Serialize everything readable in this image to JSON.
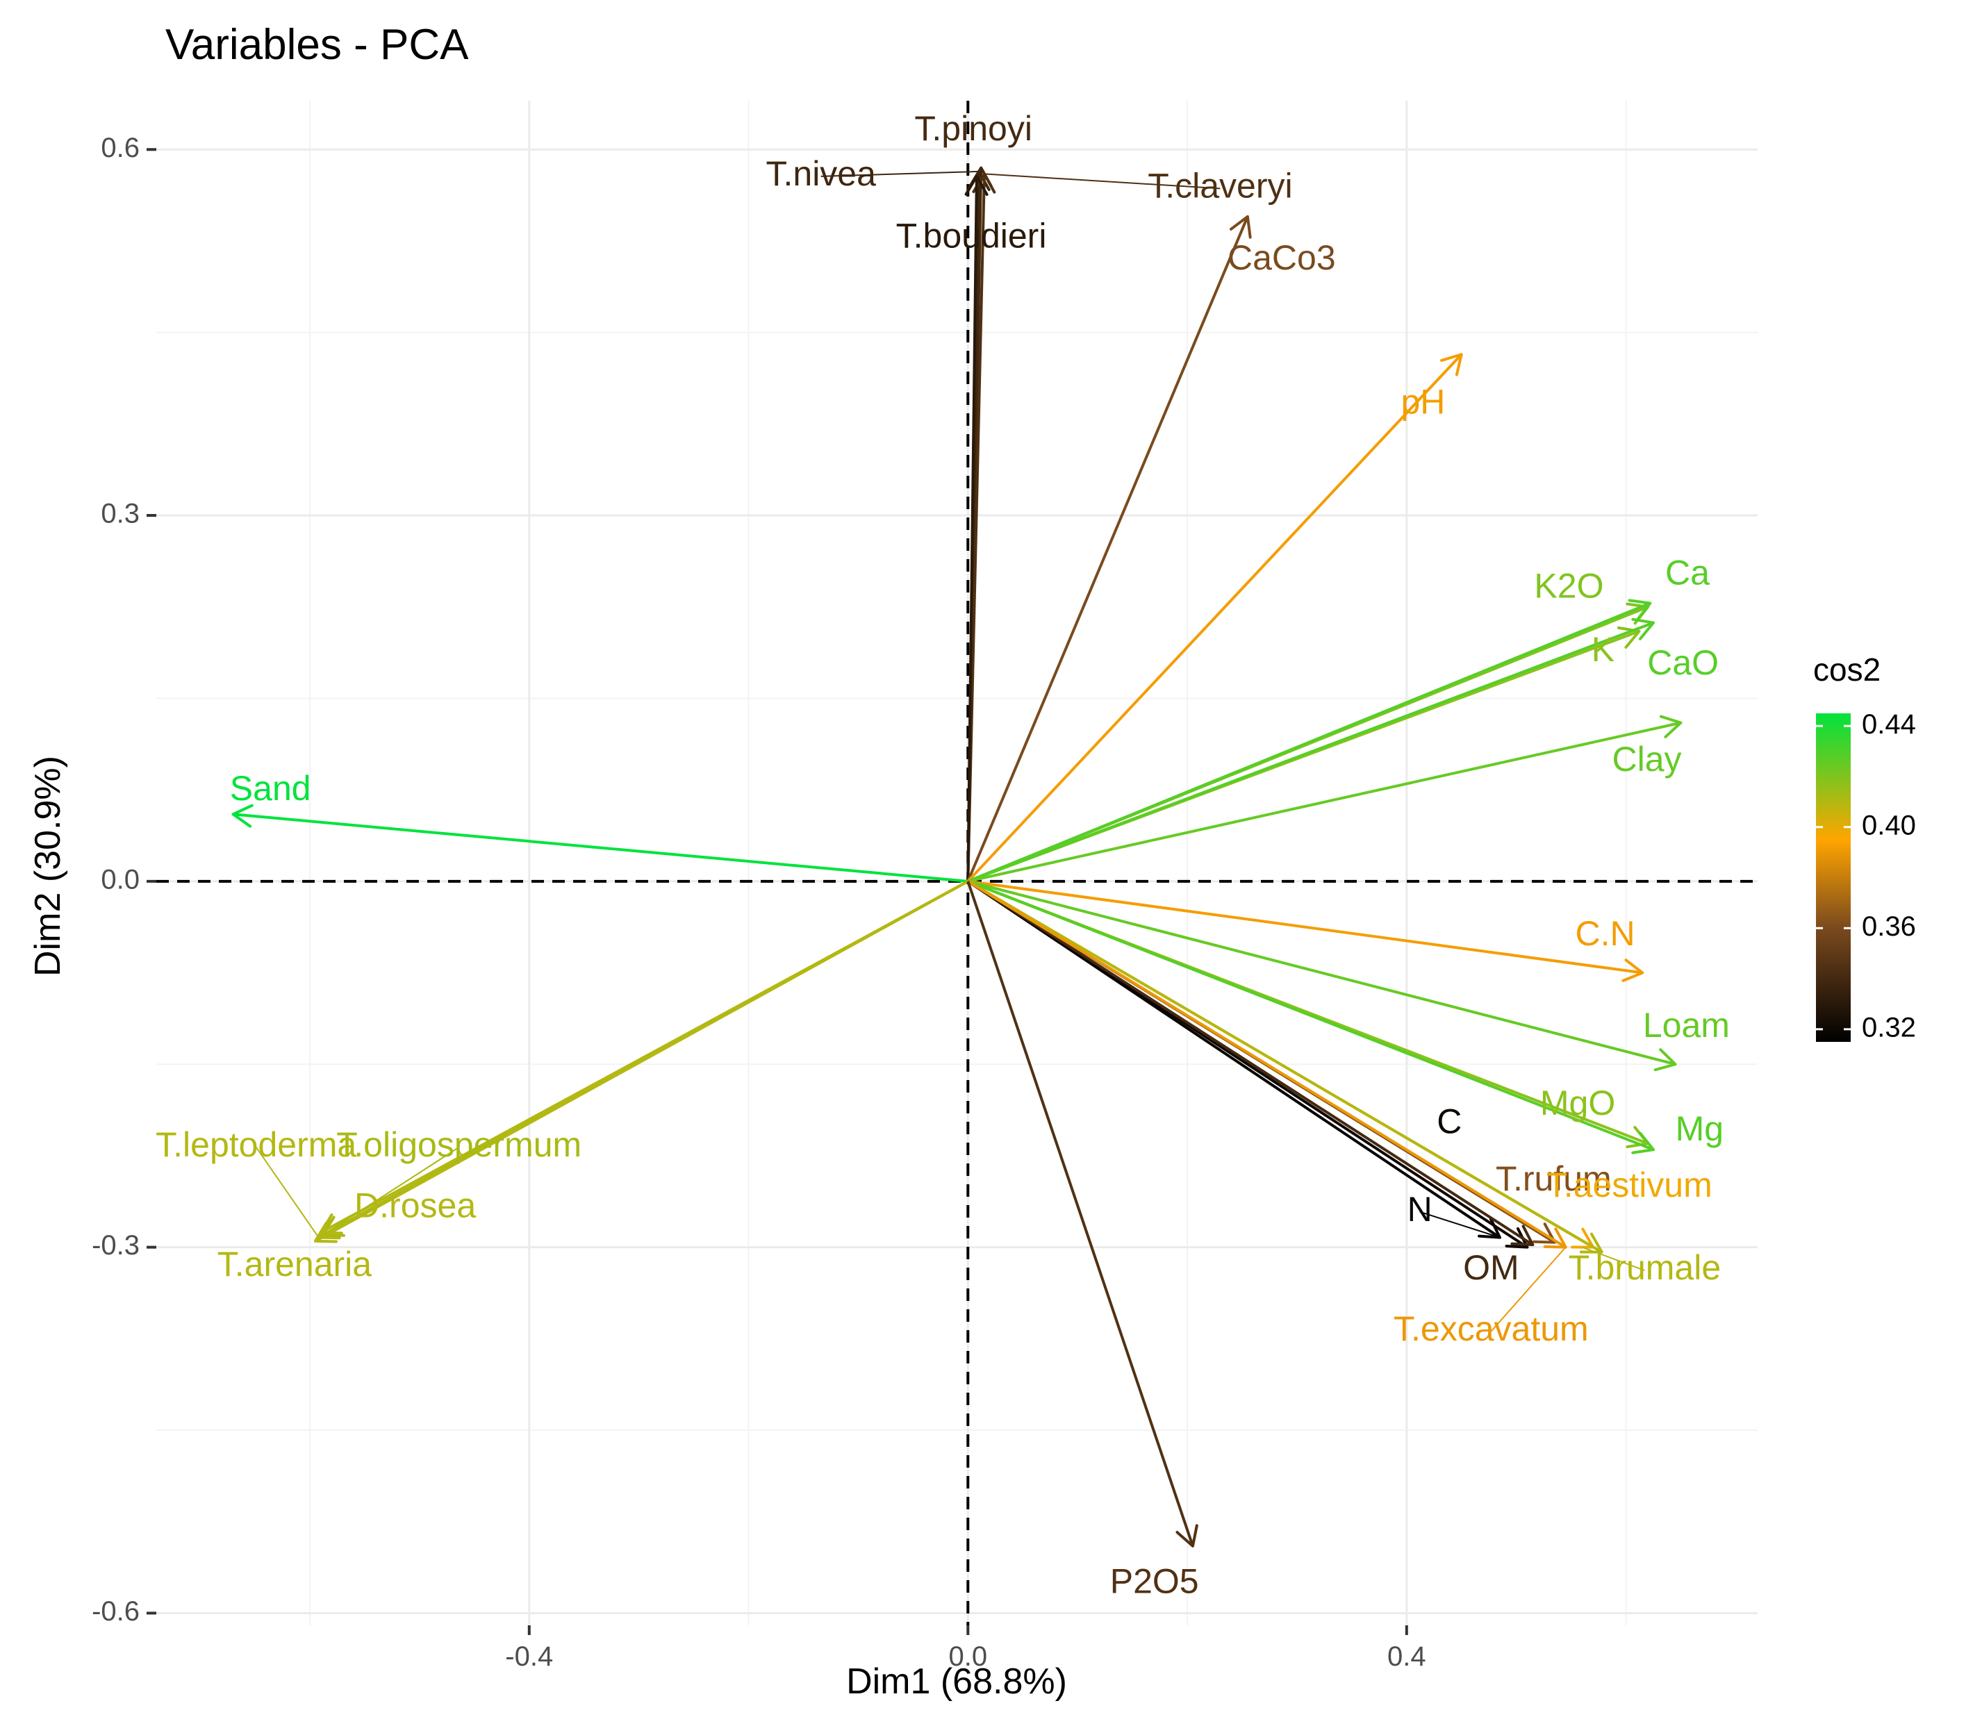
{
  "chart_data": {
    "type": "scatter",
    "subtype": "pca-variable-correlation-arrows",
    "title": "Variables - PCA",
    "xlabel": "Dim1 (68.8%)",
    "ylabel": "Dim2 (30.9%)",
    "xlim": [
      -0.74,
      0.72
    ],
    "ylim": [
      -0.61,
      0.64
    ],
    "x_ticks": [
      -0.4,
      0.0,
      0.4
    ],
    "x_tick_labels": [
      "-0.4",
      "0.0",
      "0.4"
    ],
    "y_ticks": [
      -0.6,
      -0.3,
      0.0,
      0.3,
      0.6
    ],
    "y_tick_labels": [
      "-0.6",
      "-0.3",
      "0.0",
      "0.3",
      "0.6"
    ],
    "grid": true,
    "reference_lines": {
      "x": 0.0,
      "y": 0.0,
      "style": "dashed"
    },
    "color_scale": {
      "name": "cos2",
      "min": 0.315,
      "max": 0.445,
      "stops": [
        {
          "value": 0.315,
          "color": "#000000"
        },
        {
          "value": 0.36,
          "color": "#7a4a1e"
        },
        {
          "value": 0.395,
          "color": "#ffa500"
        },
        {
          "value": 0.445,
          "color": "#00e33c"
        }
      ],
      "ticks": [
        0.32,
        0.36,
        0.4,
        0.44
      ],
      "tick_labels": [
        "0.32",
        "0.36",
        "0.40",
        "0.44"
      ]
    },
    "legend": {
      "title": "cos2",
      "position": "right"
    },
    "variables": [
      {
        "name": "T.pinoyi",
        "x": 0.012,
        "y": 0.585,
        "cos2": 0.34
      },
      {
        "name": "T.nivea",
        "x": 0.01,
        "y": 0.582,
        "cos2": 0.338
      },
      {
        "name": "T.claveryi",
        "x": 0.015,
        "y": 0.58,
        "cos2": 0.344
      },
      {
        "name": "T.boudieri",
        "x": 0.008,
        "y": 0.578,
        "cos2": 0.33
      },
      {
        "name": "CaCo3",
        "x": 0.255,
        "y": 0.545,
        "cos2": 0.36
      },
      {
        "name": "pH",
        "x": 0.45,
        "y": 0.432,
        "cos2": 0.392
      },
      {
        "name": "K2O",
        "x": 0.62,
        "y": 0.225,
        "cos2": 0.42
      },
      {
        "name": "Ca",
        "x": 0.622,
        "y": 0.228,
        "cos2": 0.428
      },
      {
        "name": "K",
        "x": 0.612,
        "y": 0.205,
        "cos2": 0.418
      },
      {
        "name": "CaO",
        "x": 0.625,
        "y": 0.212,
        "cos2": 0.428
      },
      {
        "name": "Clay",
        "x": 0.65,
        "y": 0.13,
        "cos2": 0.425
      },
      {
        "name": "Sand",
        "x": -0.67,
        "y": 0.055,
        "cos2": 0.445
      },
      {
        "name": "C.N",
        "x": 0.615,
        "y": -0.075,
        "cos2": 0.392
      },
      {
        "name": "Loam",
        "x": 0.645,
        "y": -0.15,
        "cos2": 0.425
      },
      {
        "name": "MgO",
        "x": 0.62,
        "y": -0.215,
        "cos2": 0.418
      },
      {
        "name": "Mg",
        "x": 0.625,
        "y": -0.22,
        "cos2": 0.428
      },
      {
        "name": "C",
        "x": 0.51,
        "y": -0.3,
        "cos2": 0.32
      },
      {
        "name": "N",
        "x": 0.485,
        "y": -0.292,
        "cos2": 0.318
      },
      {
        "name": "T.rufum",
        "x": 0.535,
        "y": -0.296,
        "cos2": 0.362
      },
      {
        "name": "T.aestivum",
        "x": 0.57,
        "y": -0.3,
        "cos2": 0.398
      },
      {
        "name": "OM",
        "x": 0.515,
        "y": -0.298,
        "cos2": 0.34
      },
      {
        "name": "T.brumale",
        "x": 0.578,
        "y": -0.304,
        "cos2": 0.41
      },
      {
        "name": "T.excavatum",
        "x": 0.545,
        "y": -0.3,
        "cos2": 0.39
      },
      {
        "name": "T.leptoderma",
        "x": -0.592,
        "y": -0.292,
        "cos2": 0.41
      },
      {
        "name": "T.oligospermum",
        "x": -0.588,
        "y": -0.29,
        "cos2": 0.412
      },
      {
        "name": "D.rosea",
        "x": -0.59,
        "y": -0.288,
        "cos2": 0.41
      },
      {
        "name": "T.arenaria",
        "x": -0.595,
        "y": -0.295,
        "cos2": 0.41
      },
      {
        "name": "P2O5",
        "x": 0.205,
        "y": -0.545,
        "cos2": 0.345
      }
    ],
    "annotations": [
      {
        "text": "T.pinoyi",
        "x": 0.005,
        "y": 0.615,
        "cos2": 0.34,
        "anchor": "middle"
      },
      {
        "text": "T.nivea",
        "x": -0.134,
        "y": 0.578,
        "cos2": 0.338,
        "anchor": "middle",
        "leader_to": [
          0.01,
          0.582
        ]
      },
      {
        "text": "T.claveryi",
        "x": 0.23,
        "y": 0.568,
        "cos2": 0.344,
        "anchor": "middle",
        "leader_to": [
          0.015,
          0.58
        ]
      },
      {
        "text": "T.boudieri",
        "x": 0.003,
        "y": 0.527,
        "cos2": 0.33,
        "anchor": "middle"
      },
      {
        "text": "CaCo3",
        "x": 0.286,
        "y": 0.509,
        "cos2": 0.36,
        "anchor": "middle"
      },
      {
        "text": "pH",
        "x": 0.415,
        "y": 0.391,
        "cos2": 0.392,
        "anchor": "middle"
      },
      {
        "text": "K2O",
        "x": 0.548,
        "y": 0.24,
        "cos2": 0.42,
        "anchor": "middle"
      },
      {
        "text": "Ca",
        "x": 0.656,
        "y": 0.251,
        "cos2": 0.428,
        "anchor": "middle"
      },
      {
        "text": "K",
        "x": 0.579,
        "y": 0.188,
        "cos2": 0.418,
        "anchor": "middle"
      },
      {
        "text": "CaO",
        "x": 0.652,
        "y": 0.177,
        "cos2": 0.428,
        "anchor": "middle"
      },
      {
        "text": "Clay",
        "x": 0.619,
        "y": 0.098,
        "cos2": 0.425,
        "anchor": "middle"
      },
      {
        "text": "Sand",
        "x": -0.636,
        "y": 0.074,
        "cos2": 0.445,
        "anchor": "middle"
      },
      {
        "text": "C.N",
        "x": 0.581,
        "y": -0.045,
        "cos2": 0.392,
        "anchor": "middle"
      },
      {
        "text": "Loam",
        "x": 0.655,
        "y": -0.12,
        "cos2": 0.425,
        "anchor": "middle"
      },
      {
        "text": "MgO",
        "x": 0.556,
        "y": -0.184,
        "cos2": 0.418,
        "anchor": "middle"
      },
      {
        "text": "Mg",
        "x": 0.667,
        "y": -0.205,
        "cos2": 0.428,
        "anchor": "middle"
      },
      {
        "text": "C",
        "x": 0.439,
        "y": -0.199,
        "cos2": 0.32,
        "anchor": "middle"
      },
      {
        "text": "N",
        "x": 0.412,
        "y": -0.271,
        "cos2": 0.318,
        "anchor": "middle",
        "leader_to": [
          0.485,
          -0.292
        ]
      },
      {
        "text": "T.rufum",
        "x": 0.534,
        "y": -0.246,
        "cos2": 0.362,
        "anchor": "middle"
      },
      {
        "text": "T.aestivum",
        "x": 0.603,
        "y": -0.251,
        "cos2": 0.398,
        "anchor": "middle"
      },
      {
        "text": "OM",
        "x": 0.477,
        "y": -0.319,
        "cos2": 0.34,
        "anchor": "middle"
      },
      {
        "text": "T.brumale",
        "x": 0.617,
        "y": -0.319,
        "cos2": 0.41,
        "anchor": "middle",
        "leader_to": [
          0.56,
          -0.3
        ]
      },
      {
        "text": "T.excavatum",
        "x": 0.477,
        "y": -0.369,
        "cos2": 0.39,
        "anchor": "middle",
        "leader_to": [
          0.545,
          -0.3
        ]
      },
      {
        "text": "T.leptoderma",
        "x": -0.649,
        "y": -0.218,
        "cos2": 0.41,
        "anchor": "middle",
        "leader_to": [
          -0.592,
          -0.292
        ]
      },
      {
        "text": "T.oligospermum",
        "x": -0.464,
        "y": -0.218,
        "cos2": 0.412,
        "anchor": "middle",
        "leader_to": [
          -0.588,
          -0.29
        ]
      },
      {
        "text": "D.rosea",
        "x": -0.504,
        "y": -0.268,
        "cos2": 0.41,
        "anchor": "middle"
      },
      {
        "text": "T.arenaria",
        "x": -0.614,
        "y": -0.316,
        "cos2": 0.41,
        "anchor": "middle"
      },
      {
        "text": "P2O5",
        "x": 0.17,
        "y": -0.576,
        "cos2": 0.345,
        "anchor": "middle"
      }
    ]
  }
}
